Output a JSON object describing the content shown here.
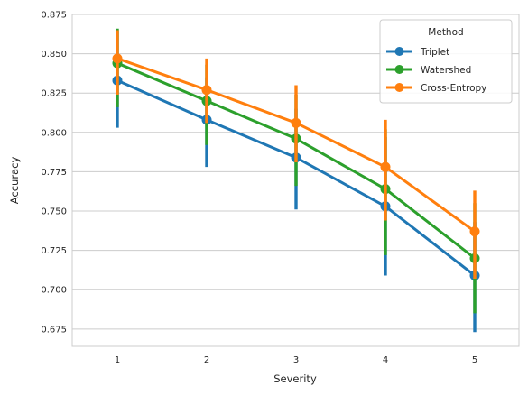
{
  "chart_data": {
    "type": "line",
    "xlabel": "Severity",
    "ylabel": "Accuracy",
    "categories": [
      "1",
      "2",
      "3",
      "4",
      "5"
    ],
    "ylim": [
      0.664,
      0.875
    ],
    "yticks": [
      0.675,
      0.7,
      0.725,
      0.75,
      0.775,
      0.8,
      0.825,
      0.85,
      0.875
    ],
    "ytick_labels": [
      "0.675",
      "0.700",
      "0.725",
      "0.750",
      "0.775",
      "0.800",
      "0.825",
      "0.850",
      "0.875"
    ],
    "grid": "horizontal",
    "legend": {
      "title": "Method",
      "placement": "top-right"
    },
    "series": [
      {
        "name": "Triplet",
        "color": "#1f77b4",
        "values": [
          0.833,
          0.808,
          0.784,
          0.753,
          0.709
        ],
        "ci_low": [
          0.803,
          0.778,
          0.751,
          0.709,
          0.673
        ],
        "ci_high": [
          0.865,
          0.835,
          0.815,
          0.797,
          0.743
        ]
      },
      {
        "name": "Watershed",
        "color": "#2ca02c",
        "values": [
          0.844,
          0.82,
          0.796,
          0.764,
          0.72
        ],
        "ci_low": [
          0.816,
          0.792,
          0.766,
          0.722,
          0.685
        ],
        "ci_high": [
          0.866,
          0.843,
          0.824,
          0.802,
          0.755
        ]
      },
      {
        "name": "Cross-Entropy",
        "color": "#ff7f0e",
        "values": [
          0.847,
          0.827,
          0.806,
          0.778,
          0.737
        ],
        "ci_low": [
          0.824,
          0.806,
          0.781,
          0.744,
          0.707
        ],
        "ci_high": [
          0.865,
          0.847,
          0.83,
          0.808,
          0.763
        ]
      }
    ]
  }
}
